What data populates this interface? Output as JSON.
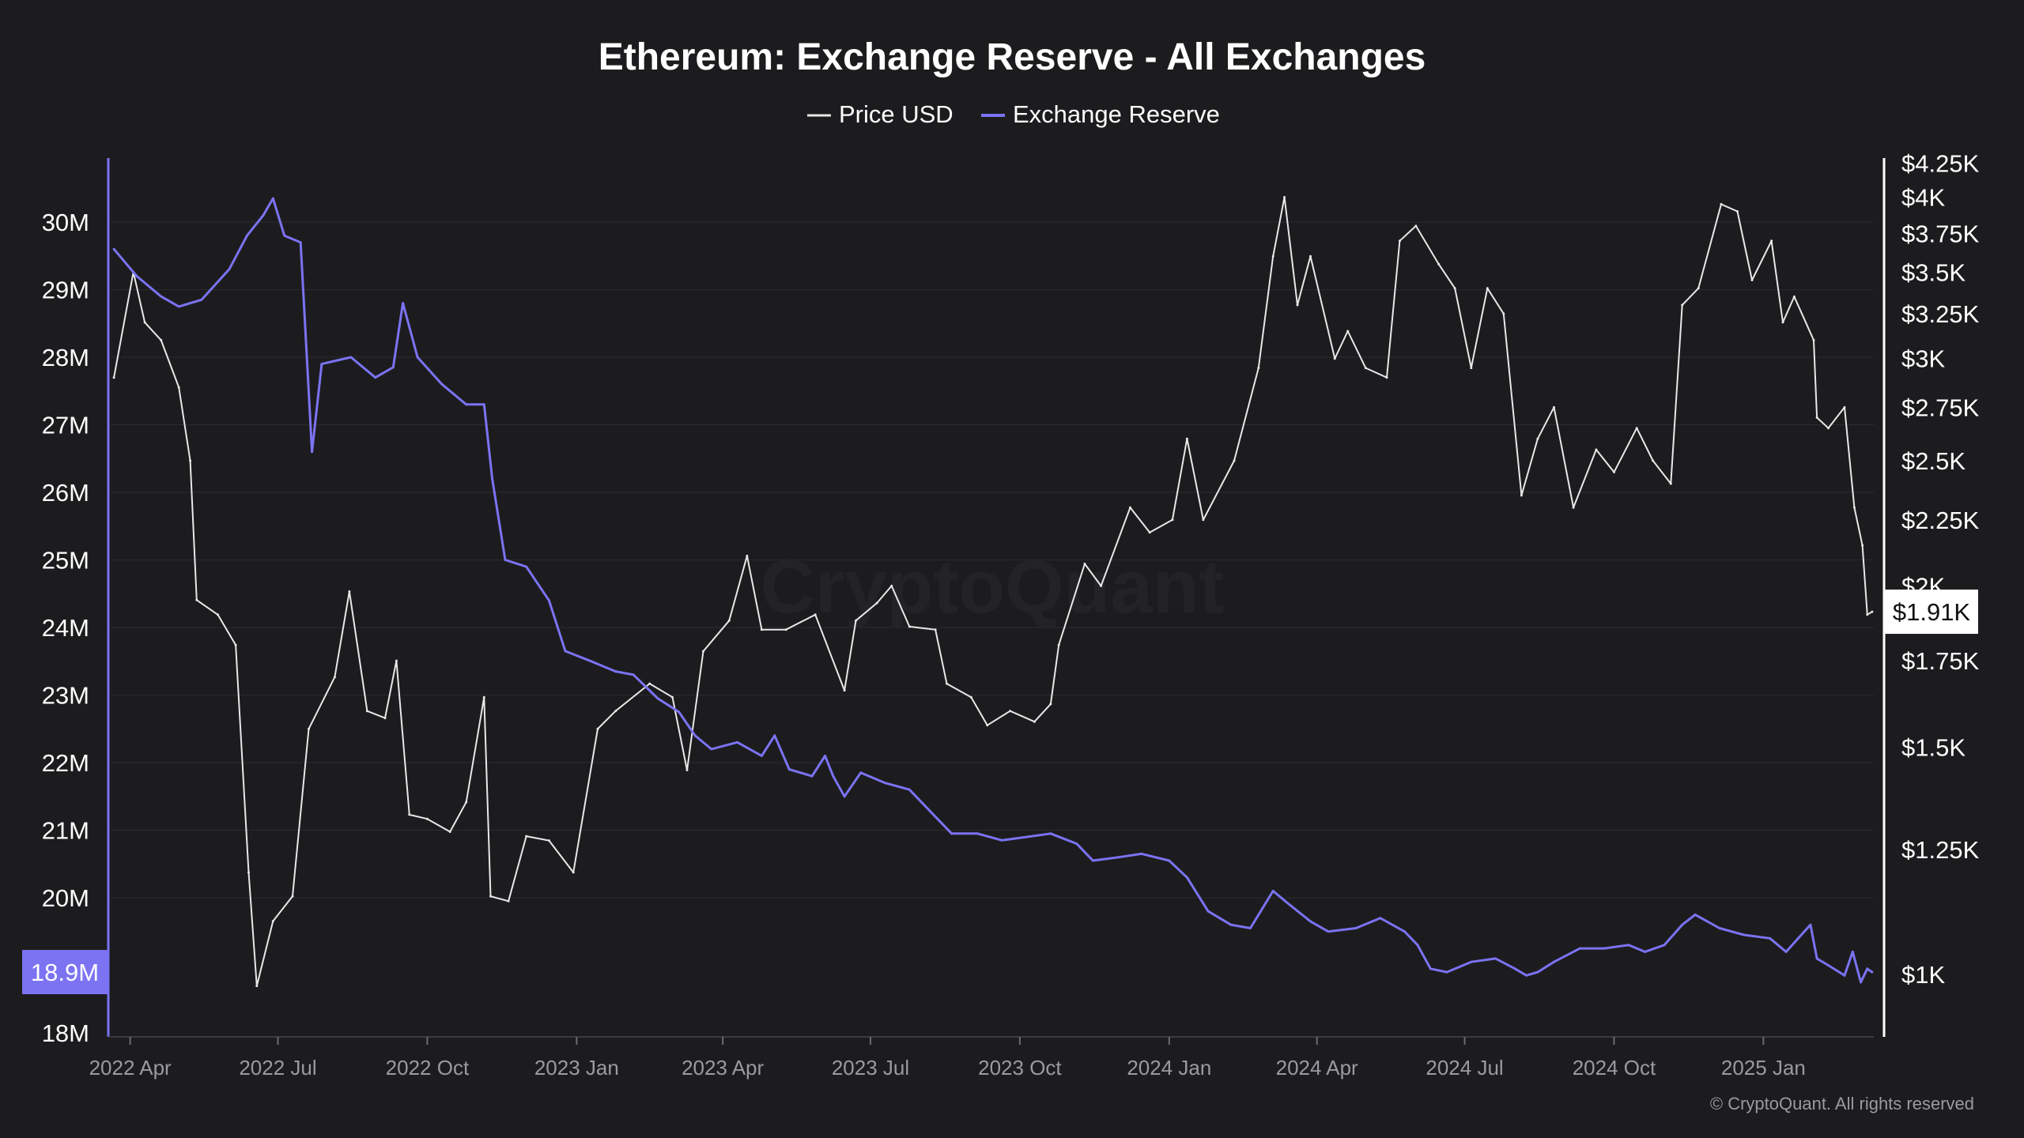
{
  "watermark": "CryptoQuant",
  "copyright": "© CryptoQuant. All rights reserved",
  "colors": {
    "background": "#1c1c1e",
    "price": "#e8e8e8",
    "reserve": "#7b73f2",
    "text": "#ffffff",
    "muted": "#9a9aa2",
    "grid": "#2b2b31"
  },
  "chart_data": {
    "type": "line",
    "title": "Ethereum: Exchange Reserve - All Exchanges",
    "grid": true,
    "legend_position": "top-center",
    "legend": [
      "Price USD",
      "Exchange Reserve"
    ],
    "x_ticks": [
      "2022 Apr",
      "2022 Jul",
      "2022 Oct",
      "2023 Jan",
      "2023 Apr",
      "2023 Jul",
      "2023 Oct",
      "2024 Jan",
      "2024 Apr",
      "2024 Jul",
      "2024 Oct",
      "2025 Jan"
    ],
    "x_tick_dates": [
      "2022-04-01",
      "2022-07-01",
      "2022-10-01",
      "2023-01-01",
      "2023-04-01",
      "2023-07-01",
      "2023-10-01",
      "2024-01-01",
      "2024-04-01",
      "2024-07-01",
      "2024-10-01",
      "2025-01-01"
    ],
    "x_range": [
      "2022-03-20",
      "2025-03-10"
    ],
    "y_left": {
      "ticks": [
        "30M",
        "29M",
        "28M",
        "27M",
        "26M",
        "25M",
        "24M",
        "23M",
        "22M",
        "21M",
        "20M",
        "18M"
      ],
      "tick_values": [
        30,
        29,
        28,
        27,
        26,
        25,
        24,
        23,
        22,
        21,
        20,
        18
      ],
      "range": [
        18,
        31.2
      ],
      "unit": "M"
    },
    "y_right": {
      "ticks": [
        "$4.25K",
        "$4K",
        "$3.75K",
        "$3.5K",
        "$3.25K",
        "$3K",
        "$2.75K",
        "$2.5K",
        "$2.25K",
        "$2K",
        "$1.75K",
        "$1.5K",
        "$1.25K",
        "$1K"
      ],
      "tick_values": [
        4250,
        4000,
        3750,
        3500,
        3250,
        3000,
        2750,
        2500,
        2250,
        2000,
        1750,
        1500,
        1250,
        1000
      ],
      "range": [
        900,
        4350
      ],
      "scale": "log"
    },
    "current": {
      "reserve_label": "18.9M",
      "reserve_value": 18.9,
      "price_label": "$1.91K",
      "price_value": 1910
    },
    "series": [
      {
        "name": "Price USD",
        "axis": "right",
        "color": "#e8e8e8",
        "points": [
          [
            "2022-03-22",
            2900
          ],
          [
            "2022-04-03",
            3500
          ],
          [
            "2022-04-10",
            3200
          ],
          [
            "2022-04-20",
            3100
          ],
          [
            "2022-05-01",
            2850
          ],
          [
            "2022-05-08",
            2500
          ],
          [
            "2022-05-12",
            1950
          ],
          [
            "2022-05-25",
            1900
          ],
          [
            "2022-06-05",
            1800
          ],
          [
            "2022-06-13",
            1200
          ],
          [
            "2022-06-18",
            980
          ],
          [
            "2022-06-28",
            1100
          ],
          [
            "2022-07-10",
            1150
          ],
          [
            "2022-07-20",
            1550
          ],
          [
            "2022-08-05",
            1700
          ],
          [
            "2022-08-14",
            1980
          ],
          [
            "2022-08-25",
            1600
          ],
          [
            "2022-09-05",
            1580
          ],
          [
            "2022-09-12",
            1750
          ],
          [
            "2022-09-20",
            1330
          ],
          [
            "2022-10-01",
            1320
          ],
          [
            "2022-10-15",
            1290
          ],
          [
            "2022-10-25",
            1360
          ],
          [
            "2022-11-05",
            1640
          ],
          [
            "2022-11-09",
            1150
          ],
          [
            "2022-11-20",
            1140
          ],
          [
            "2022-12-01",
            1280
          ],
          [
            "2022-12-15",
            1270
          ],
          [
            "2022-12-30",
            1200
          ],
          [
            "2023-01-14",
            1550
          ],
          [
            "2023-01-25",
            1600
          ],
          [
            "2023-02-15",
            1680
          ],
          [
            "2023-03-01",
            1640
          ],
          [
            "2023-03-10",
            1440
          ],
          [
            "2023-03-20",
            1780
          ],
          [
            "2023-04-05",
            1880
          ],
          [
            "2023-04-16",
            2110
          ],
          [
            "2023-04-25",
            1850
          ],
          [
            "2023-05-10",
            1850
          ],
          [
            "2023-05-28",
            1900
          ],
          [
            "2023-06-15",
            1660
          ],
          [
            "2023-06-22",
            1880
          ],
          [
            "2023-07-05",
            1940
          ],
          [
            "2023-07-14",
            2000
          ],
          [
            "2023-07-25",
            1860
          ],
          [
            "2023-08-10",
            1850
          ],
          [
            "2023-08-17",
            1680
          ],
          [
            "2023-09-01",
            1640
          ],
          [
            "2023-09-11",
            1560
          ],
          [
            "2023-09-25",
            1600
          ],
          [
            "2023-10-10",
            1570
          ],
          [
            "2023-10-20",
            1620
          ],
          [
            "2023-10-25",
            1800
          ],
          [
            "2023-11-10",
            2080
          ],
          [
            "2023-11-20",
            2000
          ],
          [
            "2023-12-08",
            2300
          ],
          [
            "2023-12-20",
            2200
          ],
          [
            "2024-01-03",
            2250
          ],
          [
            "2024-01-12",
            2600
          ],
          [
            "2024-01-22",
            2250
          ],
          [
            "2024-02-10",
            2500
          ],
          [
            "2024-02-25",
            2950
          ],
          [
            "2024-03-05",
            3600
          ],
          [
            "2024-03-12",
            4000
          ],
          [
            "2024-03-20",
            3300
          ],
          [
            "2024-03-28",
            3600
          ],
          [
            "2024-04-12",
            3000
          ],
          [
            "2024-04-20",
            3150
          ],
          [
            "2024-05-01",
            2950
          ],
          [
            "2024-05-14",
            2900
          ],
          [
            "2024-05-22",
            3700
          ],
          [
            "2024-06-01",
            3800
          ],
          [
            "2024-06-15",
            3550
          ],
          [
            "2024-06-25",
            3400
          ],
          [
            "2024-07-05",
            2950
          ],
          [
            "2024-07-15",
            3400
          ],
          [
            "2024-07-25",
            3250
          ],
          [
            "2024-08-05",
            2350
          ],
          [
            "2024-08-15",
            2600
          ],
          [
            "2024-08-25",
            2750
          ],
          [
            "2024-09-06",
            2300
          ],
          [
            "2024-09-20",
            2550
          ],
          [
            "2024-10-01",
            2450
          ],
          [
            "2024-10-15",
            2650
          ],
          [
            "2024-10-25",
            2500
          ],
          [
            "2024-11-05",
            2400
          ],
          [
            "2024-11-12",
            3300
          ],
          [
            "2024-11-22",
            3400
          ],
          [
            "2024-12-06",
            3950
          ],
          [
            "2024-12-16",
            3900
          ],
          [
            "2024-12-25",
            3450
          ],
          [
            "2025-01-06",
            3700
          ],
          [
            "2025-01-13",
            3200
          ],
          [
            "2025-01-20",
            3350
          ],
          [
            "2025-02-01",
            3100
          ],
          [
            "2025-02-03",
            2700
          ],
          [
            "2025-02-10",
            2650
          ],
          [
            "2025-02-20",
            2750
          ],
          [
            "2025-02-26",
            2300
          ],
          [
            "2025-03-03",
            2150
          ],
          [
            "2025-03-06",
            1900
          ],
          [
            "2025-03-09",
            1910
          ]
        ]
      },
      {
        "name": "Exchange Reserve",
        "axis": "left",
        "color": "#7b73f2",
        "points": [
          [
            "2022-03-22",
            29.6
          ],
          [
            "2022-04-05",
            29.2
          ],
          [
            "2022-04-20",
            28.9
          ],
          [
            "2022-05-01",
            28.75
          ],
          [
            "2022-05-15",
            28.85
          ],
          [
            "2022-06-01",
            29.3
          ],
          [
            "2022-06-12",
            29.8
          ],
          [
            "2022-06-22",
            30.1
          ],
          [
            "2022-06-28",
            30.35
          ],
          [
            "2022-07-05",
            29.8
          ],
          [
            "2022-07-15",
            29.7
          ],
          [
            "2022-07-22",
            26.6
          ],
          [
            "2022-07-28",
            27.9
          ],
          [
            "2022-08-15",
            28.0
          ],
          [
            "2022-08-30",
            27.7
          ],
          [
            "2022-09-10",
            27.85
          ],
          [
            "2022-09-16",
            28.8
          ],
          [
            "2022-09-25",
            28.0
          ],
          [
            "2022-10-10",
            27.6
          ],
          [
            "2022-10-25",
            27.3
          ],
          [
            "2022-11-05",
            27.3
          ],
          [
            "2022-11-10",
            26.2
          ],
          [
            "2022-11-18",
            25.0
          ],
          [
            "2022-12-01",
            24.9
          ],
          [
            "2022-12-15",
            24.4
          ],
          [
            "2022-12-25",
            23.65
          ],
          [
            "2023-01-10",
            23.5
          ],
          [
            "2023-01-25",
            23.35
          ],
          [
            "2023-02-05",
            23.3
          ],
          [
            "2023-02-20",
            22.95
          ],
          [
            "2023-03-05",
            22.75
          ],
          [
            "2023-03-15",
            22.4
          ],
          [
            "2023-03-25",
            22.2
          ],
          [
            "2023-04-10",
            22.3
          ],
          [
            "2023-04-25",
            22.1
          ],
          [
            "2023-05-03",
            22.4
          ],
          [
            "2023-05-12",
            21.9
          ],
          [
            "2023-05-26",
            21.8
          ],
          [
            "2023-06-03",
            22.1
          ],
          [
            "2023-06-08",
            21.8
          ],
          [
            "2023-06-15",
            21.5
          ],
          [
            "2023-06-25",
            21.85
          ],
          [
            "2023-07-10",
            21.7
          ],
          [
            "2023-07-25",
            21.6
          ],
          [
            "2023-08-10",
            21.2
          ],
          [
            "2023-08-20",
            20.95
          ],
          [
            "2023-09-05",
            20.95
          ],
          [
            "2023-09-20",
            20.85
          ],
          [
            "2023-10-05",
            20.9
          ],
          [
            "2023-10-20",
            20.95
          ],
          [
            "2023-11-05",
            20.8
          ],
          [
            "2023-11-15",
            20.55
          ],
          [
            "2023-12-01",
            20.6
          ],
          [
            "2023-12-15",
            20.65
          ],
          [
            "2024-01-01",
            20.55
          ],
          [
            "2024-01-12",
            20.3
          ],
          [
            "2024-01-25",
            19.8
          ],
          [
            "2024-02-08",
            19.6
          ],
          [
            "2024-02-20",
            19.55
          ],
          [
            "2024-03-05",
            20.1
          ],
          [
            "2024-03-15",
            19.9
          ],
          [
            "2024-03-28",
            19.65
          ],
          [
            "2024-04-08",
            19.5
          ],
          [
            "2024-04-25",
            19.55
          ],
          [
            "2024-05-10",
            19.7
          ],
          [
            "2024-05-25",
            19.5
          ],
          [
            "2024-06-02",
            19.3
          ],
          [
            "2024-06-10",
            18.95
          ],
          [
            "2024-06-20",
            18.9
          ],
          [
            "2024-07-05",
            19.05
          ],
          [
            "2024-07-20",
            19.1
          ],
          [
            "2024-08-01",
            18.95
          ],
          [
            "2024-08-08",
            18.85
          ],
          [
            "2024-08-15",
            18.9
          ],
          [
            "2024-08-25",
            19.05
          ],
          [
            "2024-09-10",
            19.25
          ],
          [
            "2024-09-25",
            19.25
          ],
          [
            "2024-10-10",
            19.3
          ],
          [
            "2024-10-20",
            19.2
          ],
          [
            "2024-11-01",
            19.3
          ],
          [
            "2024-11-12",
            19.6
          ],
          [
            "2024-11-20",
            19.75
          ],
          [
            "2024-12-05",
            19.55
          ],
          [
            "2024-12-20",
            19.45
          ],
          [
            "2025-01-05",
            19.4
          ],
          [
            "2025-01-15",
            19.2
          ],
          [
            "2025-01-30",
            19.6
          ],
          [
            "2025-02-03",
            19.1
          ],
          [
            "2025-02-10",
            19.0
          ],
          [
            "2025-02-20",
            18.85
          ],
          [
            "2025-02-25",
            19.2
          ],
          [
            "2025-03-02",
            18.75
          ],
          [
            "2025-03-06",
            18.95
          ],
          [
            "2025-03-09",
            18.9
          ]
        ]
      }
    ]
  }
}
